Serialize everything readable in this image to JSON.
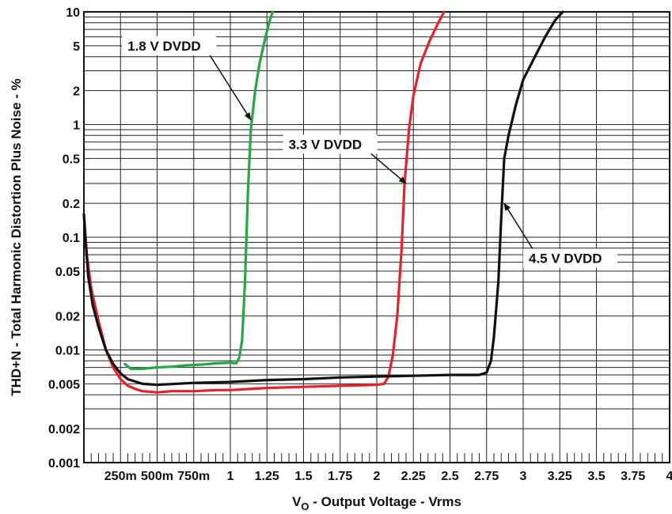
{
  "chart_data": {
    "type": "line",
    "xlabel": "V_O - Output Voltage - Vrms",
    "xlabel_main": "V",
    "xlabel_sub": "O",
    "xlabel_rest": " - Output Voltage - Vrms",
    "ylabel": "THD+N - Total Harmonic Distortion Plus Noise - %",
    "yscale": "log",
    "xlim": [
      0,
      4
    ],
    "ylim": [
      0.001,
      10
    ],
    "grid": true,
    "x_ticks": [
      {
        "v": 0.25,
        "label": "250m"
      },
      {
        "v": 0.5,
        "label": "500m"
      },
      {
        "v": 0.75,
        "label": "750m"
      },
      {
        "v": 1.0,
        "label": "1"
      },
      {
        "v": 1.25,
        "label": "1.25"
      },
      {
        "v": 1.5,
        "label": "1.5"
      },
      {
        "v": 1.75,
        "label": "1.75"
      },
      {
        "v": 2.0,
        "label": "2"
      },
      {
        "v": 2.25,
        "label": "2.25"
      },
      {
        "v": 2.5,
        "label": "2.5"
      },
      {
        "v": 2.75,
        "label": "2.75"
      },
      {
        "v": 3.0,
        "label": "3"
      },
      {
        "v": 3.25,
        "label": "3.25"
      },
      {
        "v": 3.5,
        "label": "3.5"
      },
      {
        "v": 3.75,
        "label": "3.75"
      },
      {
        "v": 4.0,
        "label": "4"
      }
    ],
    "y_ticks": [
      {
        "v": 0.001,
        "label": "0.001"
      },
      {
        "v": 0.002,
        "label": "0.002"
      },
      {
        "v": 0.005,
        "label": "0.005"
      },
      {
        "v": 0.01,
        "label": "0.01"
      },
      {
        "v": 0.02,
        "label": "0.02"
      },
      {
        "v": 0.05,
        "label": "0.05"
      },
      {
        "v": 0.1,
        "label": "0.1"
      },
      {
        "v": 0.2,
        "label": "0.2"
      },
      {
        "v": 0.5,
        "label": "0.5"
      },
      {
        "v": 1,
        "label": "1"
      },
      {
        "v": 2,
        "label": "2"
      },
      {
        "v": 5,
        "label": "5"
      },
      {
        "v": 10,
        "label": "10"
      }
    ],
    "series": [
      {
        "name": "1.8 V DVDD",
        "color": "#22a844",
        "points": [
          [
            0.28,
            0.0075
          ],
          [
            0.32,
            0.0068
          ],
          [
            0.4,
            0.0068
          ],
          [
            0.5,
            0.007
          ],
          [
            0.6,
            0.0071
          ],
          [
            0.7,
            0.0073
          ],
          [
            0.8,
            0.0074
          ],
          [
            0.9,
            0.0076
          ],
          [
            1.0,
            0.0077
          ],
          [
            1.04,
            0.0076
          ],
          [
            1.06,
            0.0085
          ],
          [
            1.08,
            0.012
          ],
          [
            1.1,
            0.04
          ],
          [
            1.12,
            0.25
          ],
          [
            1.14,
            0.9
          ],
          [
            1.17,
            2.0
          ],
          [
            1.2,
            3.5
          ],
          [
            1.24,
            6.0
          ],
          [
            1.27,
            8.5
          ],
          [
            1.29,
            10.0
          ]
        ]
      },
      {
        "name": "3.3 V DVDD",
        "color": "#e8212a",
        "points": [
          [
            0.0,
            0.16
          ],
          [
            0.02,
            0.07
          ],
          [
            0.05,
            0.035
          ],
          [
            0.1,
            0.018
          ],
          [
            0.15,
            0.01
          ],
          [
            0.2,
            0.007
          ],
          [
            0.25,
            0.0055
          ],
          [
            0.3,
            0.0048
          ],
          [
            0.35,
            0.0045
          ],
          [
            0.4,
            0.0043
          ],
          [
            0.5,
            0.0042
          ],
          [
            0.6,
            0.0043
          ],
          [
            0.75,
            0.0043
          ],
          [
            0.9,
            0.0044
          ],
          [
            1.0,
            0.0044
          ],
          [
            1.25,
            0.0046
          ],
          [
            1.5,
            0.0047
          ],
          [
            1.75,
            0.0048
          ],
          [
            2.0,
            0.0049
          ],
          [
            2.05,
            0.005
          ],
          [
            2.08,
            0.0058
          ],
          [
            2.11,
            0.009
          ],
          [
            2.14,
            0.02
          ],
          [
            2.17,
            0.08
          ],
          [
            2.19,
            0.3
          ],
          [
            2.22,
            0.9
          ],
          [
            2.25,
            1.8
          ],
          [
            2.3,
            3.5
          ],
          [
            2.36,
            5.5
          ],
          [
            2.42,
            8.0
          ],
          [
            2.46,
            10.0
          ]
        ]
      },
      {
        "name": "4.5 V DVDD",
        "color": "#111111",
        "points": [
          [
            0.0,
            0.16
          ],
          [
            0.01,
            0.1
          ],
          [
            0.03,
            0.045
          ],
          [
            0.06,
            0.025
          ],
          [
            0.1,
            0.016
          ],
          [
            0.15,
            0.01
          ],
          [
            0.2,
            0.0075
          ],
          [
            0.25,
            0.0062
          ],
          [
            0.3,
            0.0055
          ],
          [
            0.4,
            0.005
          ],
          [
            0.5,
            0.0049
          ],
          [
            0.75,
            0.0051
          ],
          [
            1.0,
            0.0052
          ],
          [
            1.25,
            0.0054
          ],
          [
            1.5,
            0.0055
          ],
          [
            1.75,
            0.0057
          ],
          [
            2.0,
            0.0058
          ],
          [
            2.25,
            0.0059
          ],
          [
            2.5,
            0.006
          ],
          [
            2.7,
            0.006
          ],
          [
            2.75,
            0.0063
          ],
          [
            2.78,
            0.008
          ],
          [
            2.8,
            0.013
          ],
          [
            2.83,
            0.04
          ],
          [
            2.85,
            0.15
          ],
          [
            2.87,
            0.5
          ],
          [
            2.9,
            0.8
          ],
          [
            2.95,
            1.5
          ],
          [
            3.0,
            2.5
          ],
          [
            3.08,
            4.0
          ],
          [
            3.15,
            6.0
          ],
          [
            3.22,
            8.5
          ],
          [
            3.27,
            10.0
          ]
        ]
      }
    ],
    "annotations": [
      {
        "text": "1.8 V DVDD",
        "box_x": 0.26,
        "box_y": 5.0,
        "arrow_to": [
          1.14,
          1.1
        ]
      },
      {
        "text": "3.3 V DVDD",
        "box_x": 1.36,
        "box_y": 0.67,
        "arrow_to": [
          2.2,
          0.3
        ]
      },
      {
        "text": "4.5 V DVDD",
        "box_x": 3.0,
        "box_y": 0.065,
        "arrow_to": [
          2.87,
          0.2
        ]
      }
    ]
  }
}
